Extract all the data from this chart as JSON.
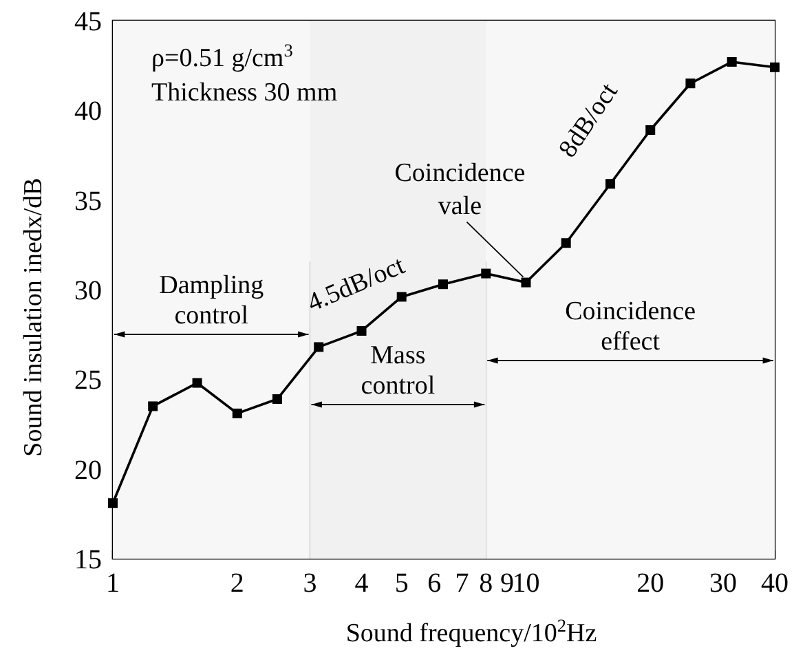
{
  "chart_data": {
    "type": "line",
    "xlabel": "Sound frequency/10$^{2}$Hz",
    "ylabel": "Sound insulation inedx/dB",
    "log": "x",
    "x": [
      1,
      1.25,
      1.6,
      2,
      2.5,
      3.15,
      4,
      5,
      6.3,
      8,
      10,
      12.5,
      16,
      20,
      25,
      31.5,
      40
    ],
    "series": [
      {
        "color": "#000000",
        "values": [
          18.1,
          23.5,
          24.8,
          23.1,
          23.9,
          26.8,
          27.7,
          29.6,
          30.3,
          30.9,
          30.4,
          32.6,
          35.9,
          38.9,
          41.5,
          42.7,
          42.4
        ]
      }
    ],
    "marker": "square",
    "line_style": "solid",
    "xlim": [
      1,
      40
    ],
    "xticks": [
      1,
      2,
      3,
      4,
      5,
      6,
      7,
      8,
      9,
      10,
      20,
      30,
      40
    ],
    "ylim": [
      15,
      45
    ],
    "yticks": [
      15,
      20,
      25,
      30,
      35,
      40,
      45
    ],
    "ref_lines": [
      {
        "axis": "x",
        "value": 3,
        "label": null
      },
      {
        "axis": "x",
        "value": 8,
        "label": null
      }
    ],
    "bands": [
      {
        "axis": "x",
        "from": 1,
        "to": 3,
        "label": "Dampling control",
        "color": "#f7f7f7"
      },
      {
        "axis": "x",
        "from": 3,
        "to": 8,
        "label": "Mass control",
        "color": "#f1f1f1"
      },
      {
        "axis": "x",
        "from": 8,
        "to": 40,
        "label": "Coincidence effect",
        "color": "#f7f7f7"
      }
    ],
    "annotations": [
      "ρ=0.51 g/cm$^{3}$",
      "Thickness 30 mm",
      {
        "text": "4.5dB/oct",
        "x": 4,
        "y": 27.7
      },
      {
        "text": "Coincidence vale",
        "x": 10,
        "y": 30.4
      },
      {
        "text": "8dB/oct",
        "x": 16,
        "y": 35.9
      }
    ]
  }
}
